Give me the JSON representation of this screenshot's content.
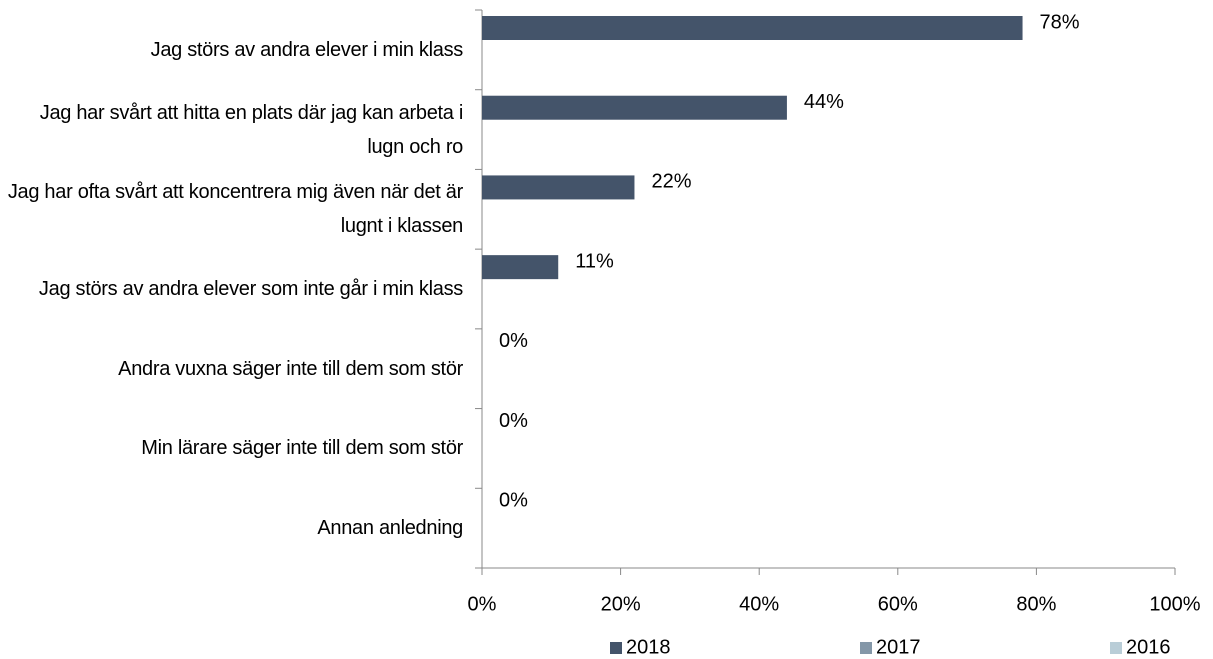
{
  "chart_data": {
    "type": "barh",
    "categories": [
      "Jag störs av andra elever i min klass",
      "Jag har svårt att hitta en plats där jag kan arbeta i lugn och ro",
      "Jag har ofta svårt att koncentrera mig även när det är lugnt i klassen",
      "Jag störs av andra elever som inte går i min klass",
      "Andra vuxna säger inte till dem som stör",
      "Min lärare säger inte till dem som stör",
      "Annan anledning"
    ],
    "series": [
      {
        "name": "2018",
        "color": "#44546a",
        "values": [
          78,
          44,
          22,
          11,
          0,
          0,
          0
        ],
        "value_labels": [
          "78%",
          "44%",
          "22%",
          "11%",
          "0%",
          "0%",
          "0%"
        ]
      },
      {
        "name": "2017",
        "color": "#8497a8",
        "values": [
          null,
          null,
          null,
          null,
          null,
          null,
          null
        ]
      },
      {
        "name": "2016",
        "color": "#b9cdd7",
        "values": [
          null,
          null,
          null,
          null,
          null,
          null,
          null
        ]
      }
    ],
    "xlim": [
      0,
      100
    ],
    "xticks": [
      {
        "value": 0,
        "label": "0%"
      },
      {
        "value": 20,
        "label": "20%"
      },
      {
        "value": 40,
        "label": "40%"
      },
      {
        "value": 60,
        "label": "60%"
      },
      {
        "value": 80,
        "label": "80%"
      },
      {
        "value": 100,
        "label": "100%"
      }
    ],
    "legend": "bottom"
  }
}
